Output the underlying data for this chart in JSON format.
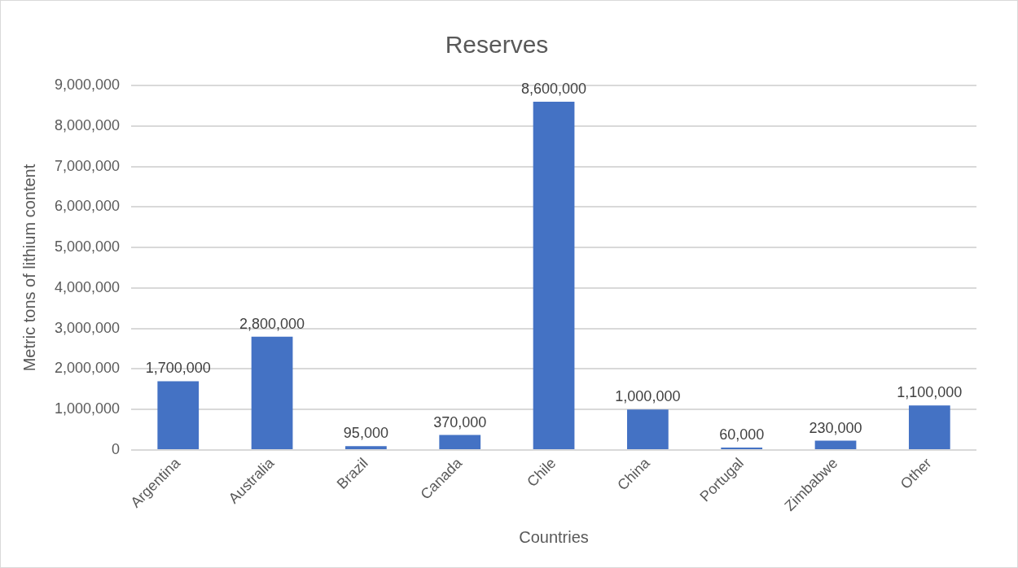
{
  "chart_data": {
    "type": "bar",
    "title": "Reserves",
    "xlabel": "Countries",
    "ylabel": "Metric tons of lithium content",
    "categories": [
      "Argentina",
      "Australia",
      "Brazil",
      "Canada",
      "Chile",
      "China",
      "Portugal",
      "Zimbabwe",
      "Other"
    ],
    "values": [
      1700000,
      2800000,
      95000,
      370000,
      8600000,
      1000000,
      60000,
      230000,
      1100000
    ],
    "value_labels": [
      "1,700,000",
      "2,800,000",
      "95,000",
      "370,000",
      "8,600,000",
      "1,000,000",
      "60,000",
      "230,000",
      "1,100,000"
    ],
    "color": "#4472c4",
    "ylim": [
      0,
      9000000
    ],
    "yticks": [
      0,
      {
        "value": 1000000,
        "label": "1,000,000"
      },
      {
        "value": 2000000,
        "label": "2,000,000"
      },
      {
        "value": 3000000,
        "label": "3,000,000"
      },
      {
        "value": 4000000,
        "label": "4,000,000"
      },
      {
        "value": 5000000,
        "label": "5,000,000"
      },
      {
        "value": 6000000,
        "label": "6,000,000"
      },
      {
        "value": 7000000,
        "label": "7,000,000"
      },
      {
        "value": 8000000,
        "label": "8,000,000"
      },
      {
        "value": 9000000,
        "label": "9,000,000"
      }
    ],
    "grid": "y"
  }
}
